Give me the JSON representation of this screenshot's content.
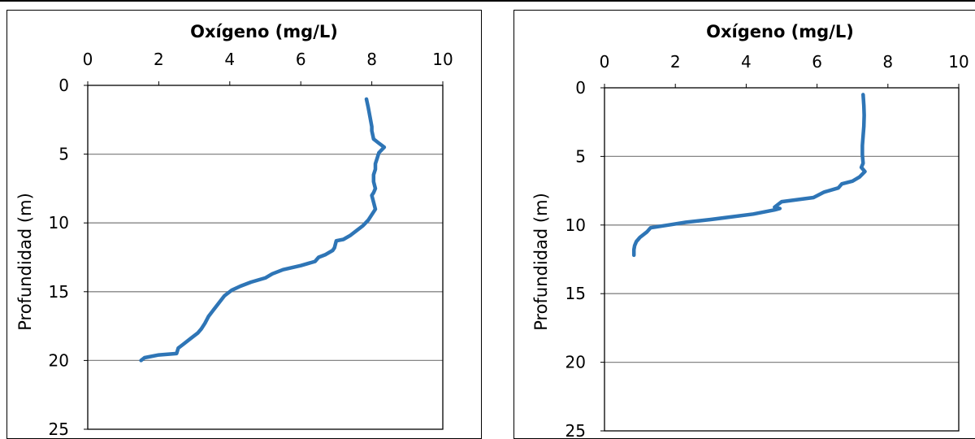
{
  "chart_data": [
    {
      "type": "line",
      "title": "Oxígeno (mg/L)",
      "xlabel": "Oxígeno (mg/L)",
      "ylabel": "Profundidad (m)",
      "x_axis_position": "top",
      "y_axis_inverted": true,
      "xlim": [
        0,
        10
      ],
      "ylim": [
        0,
        25
      ],
      "x_ticks": [
        "0",
        "2",
        "4",
        "6",
        "8",
        "10"
      ],
      "y_ticks": [
        "0",
        "5",
        "10",
        "15",
        "20",
        "25"
      ],
      "grid": "horizontal",
      "color": "#2e75b6",
      "series": [
        {
          "x": [
            7.85,
            7.9,
            7.95,
            8.0,
            8.0,
            8.05,
            8.2,
            8.35,
            8.2,
            8.15,
            8.1,
            8.1,
            8.05,
            8.05,
            8.1,
            8.05,
            8.0,
            8.05,
            8.1,
            7.9,
            7.75,
            7.6,
            7.4,
            7.2,
            7.0,
            6.95,
            6.9,
            6.7,
            6.5,
            6.4,
            6.0,
            5.5,
            5.2,
            5.0,
            4.6,
            4.3,
            4.05,
            3.85,
            3.7,
            3.55,
            3.4,
            3.3,
            3.2,
            3.1,
            2.9,
            2.7,
            2.6,
            2.55,
            2.5,
            2.0,
            1.6,
            1.5
          ],
          "y": [
            1.0,
            1.6,
            2.3,
            3.0,
            3.3,
            3.9,
            4.2,
            4.5,
            4.9,
            5.3,
            5.7,
            6.1,
            6.5,
            7.0,
            7.5,
            7.8,
            8.0,
            8.5,
            9.0,
            9.8,
            10.2,
            10.5,
            10.9,
            11.2,
            11.3,
            11.8,
            12.0,
            12.3,
            12.5,
            12.8,
            13.1,
            13.4,
            13.7,
            14.0,
            14.3,
            14.6,
            14.9,
            15.3,
            15.8,
            16.3,
            16.8,
            17.3,
            17.7,
            18.0,
            18.4,
            18.8,
            19.0,
            19.1,
            19.5,
            19.6,
            19.8,
            20.0
          ]
        }
      ]
    },
    {
      "type": "line",
      "title": "Oxígeno (mg/L)",
      "xlabel": "Oxígeno (mg/L)",
      "ylabel": "Profundidad (m)",
      "x_axis_position": "top",
      "y_axis_inverted": true,
      "xlim": [
        0,
        10
      ],
      "ylim": [
        0,
        25
      ],
      "x_ticks": [
        "0",
        "2",
        "4",
        "6",
        "8",
        "10"
      ],
      "y_ticks": [
        "0",
        "5",
        "10",
        "15",
        "20",
        "25"
      ],
      "grid": "horizontal",
      "color": "#2e75b6",
      "series": [
        {
          "x": [
            7.3,
            7.32,
            7.33,
            7.32,
            7.3,
            7.28,
            7.28,
            7.3,
            7.25,
            7.35,
            7.2,
            7.0,
            6.7,
            6.6,
            6.2,
            5.9,
            5.0,
            4.9,
            4.8,
            4.95,
            4.8,
            4.2,
            3.0,
            2.3,
            1.8,
            1.3,
            1.2,
            1.0,
            0.9,
            0.85,
            0.83,
            0.83
          ],
          "y": [
            0.5,
            1.3,
            2.0,
            2.8,
            3.5,
            4.2,
            4.9,
            5.5,
            5.8,
            6.1,
            6.5,
            6.8,
            7.0,
            7.3,
            7.6,
            8.0,
            8.3,
            8.5,
            8.7,
            8.8,
            8.9,
            9.2,
            9.6,
            9.8,
            10.0,
            10.2,
            10.5,
            10.9,
            11.2,
            11.5,
            11.8,
            12.2
          ]
        }
      ]
    }
  ]
}
